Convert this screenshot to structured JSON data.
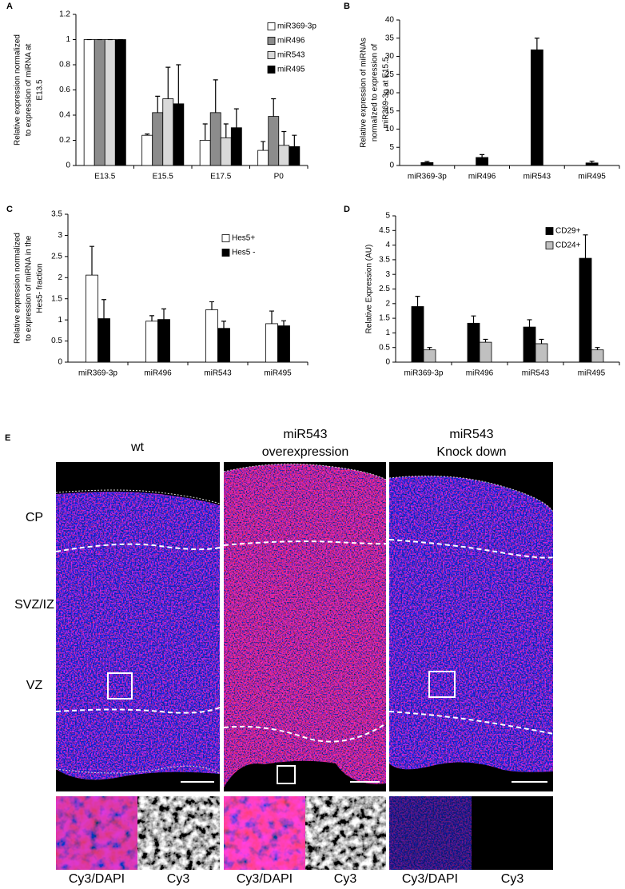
{
  "chart_data": [
    {
      "type": "bar",
      "panel": "A",
      "ylabel": [
        "Relative expression normalized",
        "to expression of miRNA at",
        "E13.5"
      ],
      "categories": [
        "E13.5",
        "E15.5",
        "E17.5",
        "P0"
      ],
      "ylim": [
        0,
        1.2
      ],
      "yticks": [
        0,
        0.2,
        0.4,
        0.6,
        0.8,
        1,
        1.2
      ],
      "legend": "upper right",
      "series": [
        {
          "name": "miR369-3p",
          "color": "#ffffff",
          "values": [
            1,
            0.24,
            0.2,
            0.12
          ],
          "errors": [
            0,
            0.01,
            0.13,
            0.07
          ]
        },
        {
          "name": "miR496",
          "color": "#8c8c8c",
          "values": [
            1,
            0.42,
            0.42,
            0.39
          ],
          "errors": [
            0,
            0.13,
            0.26,
            0.14
          ]
        },
        {
          "name": "miR543",
          "color": "#d9d9d9",
          "values": [
            1,
            0.53,
            0.22,
            0.16
          ],
          "errors": [
            0,
            0.25,
            0.11,
            0.11
          ]
        },
        {
          "name": "miR495",
          "color": "#000000",
          "values": [
            1,
            0.49,
            0.3,
            0.15
          ],
          "errors": [
            0,
            0.31,
            0.15,
            0.09
          ]
        }
      ]
    },
    {
      "type": "bar",
      "panel": "B",
      "ylabel": [
        "Relative expression of miRNAs",
        "normalized to expression of",
        "miR369-3p at E15.5"
      ],
      "categories": [
        "miR369-3p",
        "miR496",
        "miR543",
        "miR495"
      ],
      "ylim": [
        0,
        40
      ],
      "yticks": [
        0,
        5,
        10,
        15,
        20,
        25,
        30,
        35,
        40
      ],
      "color": "#000000",
      "values": [
        0.8,
        2.2,
        31.8,
        0.7
      ],
      "errors": [
        0.3,
        0.8,
        3.2,
        0.5
      ]
    },
    {
      "type": "bar",
      "panel": "C",
      "ylabel": [
        "Relative expression normalized",
        "to expression of miRNA in the",
        "Hes5- fraction"
      ],
      "categories": [
        "miR369-3p",
        "miR496",
        "miR543",
        "miR495"
      ],
      "ylim": [
        0,
        3.5
      ],
      "yticks": [
        0,
        0.5,
        1,
        1.5,
        2,
        2.5,
        3,
        3.5
      ],
      "legend": "upper right",
      "series": [
        {
          "name": "Hes5+",
          "color": "#ffffff",
          "values": [
            2.06,
            0.97,
            1.24,
            0.91
          ],
          "errors": [
            0.68,
            0.13,
            0.19,
            0.3
          ]
        },
        {
          "name": "Hes5 -",
          "color": "#000000",
          "values": [
            1.03,
            1.01,
            0.8,
            0.86
          ],
          "errors": [
            0.45,
            0.25,
            0.17,
            0.12
          ]
        }
      ]
    },
    {
      "type": "bar",
      "panel": "D",
      "ylabel": [
        "Relative Expression (AU)"
      ],
      "categories": [
        "miR369-3p",
        "miR496",
        "miR543",
        "miR495"
      ],
      "ylim": [
        0,
        5
      ],
      "yticks": [
        0,
        0.5,
        1,
        1.5,
        2,
        2.5,
        3,
        3.5,
        4,
        4.5,
        5
      ],
      "legend": "upper right",
      "series": [
        {
          "name": "CD29+",
          "color": "#000000",
          "values": [
            1.9,
            1.33,
            1.2,
            3.55
          ],
          "errors": [
            0.35,
            0.25,
            0.25,
            0.8
          ]
        },
        {
          "name": "CD24+",
          "color": "#c0c0c0",
          "values": [
            0.42,
            0.68,
            0.63,
            0.42
          ],
          "errors": [
            0.08,
            0.1,
            0.15,
            0.08
          ]
        }
      ]
    }
  ],
  "panel_e": {
    "label": "E",
    "columns": [
      [
        "wt"
      ],
      [
        "miR543",
        "overexpression"
      ],
      [
        "miR543",
        "Knock down"
      ]
    ],
    "rows": [
      "CP",
      "SVZ/IZ",
      "VZ"
    ],
    "insets": [
      "Cy3/DAPI",
      "Cy3",
      "Cy3/DAPI",
      "Cy3",
      "Cy3/DAPI",
      "Cy3"
    ]
  }
}
